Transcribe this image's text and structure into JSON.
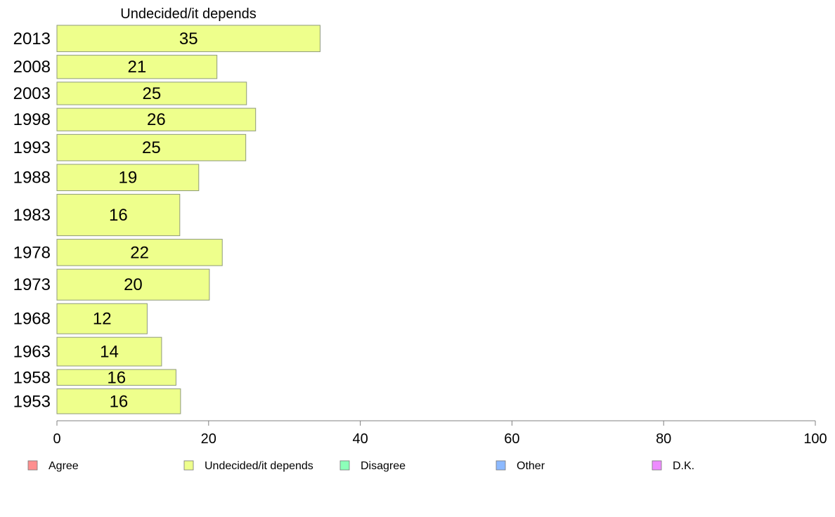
{
  "chart_data": {
    "type": "bar",
    "orientation": "horizontal",
    "title": "Undecided/it depends",
    "categories": [
      "2013",
      "2008",
      "2003",
      "1998",
      "1993",
      "1988",
      "1983",
      "1978",
      "1973",
      "1968",
      "1963",
      "1958",
      "1953"
    ],
    "values": [
      35,
      21,
      25,
      26,
      25,
      19,
      16,
      22,
      20,
      12,
      14,
      16,
      16
    ],
    "bar_lengths": [
      34.7,
      21.1,
      25.0,
      26.2,
      24.9,
      18.7,
      16.2,
      21.8,
      20.1,
      11.9,
      13.8,
      15.7,
      16.3
    ],
    "bar_thickness_weights": [
      35,
      31,
      30,
      30,
      35,
      35,
      55,
      35,
      41,
      40,
      38,
      21,
      33
    ],
    "xlim": [
      0,
      100
    ],
    "xticks": [
      0,
      20,
      40,
      60,
      80,
      100
    ],
    "xlabel": "",
    "ylabel": "",
    "bar_color": "#eeff8c",
    "bar_stroke": "#8f9a7a",
    "legend": {
      "placement": "bottom",
      "items": [
        {
          "label": "Agree",
          "color": "#ff8f8f"
        },
        {
          "label": "Undecided/it depends",
          "color": "#eeff8c"
        },
        {
          "label": "Disagree",
          "color": "#8cffb9"
        },
        {
          "label": "Other",
          "color": "#8cb9ff"
        },
        {
          "label": "D.K.",
          "color": "#ee8cff"
        }
      ]
    }
  }
}
